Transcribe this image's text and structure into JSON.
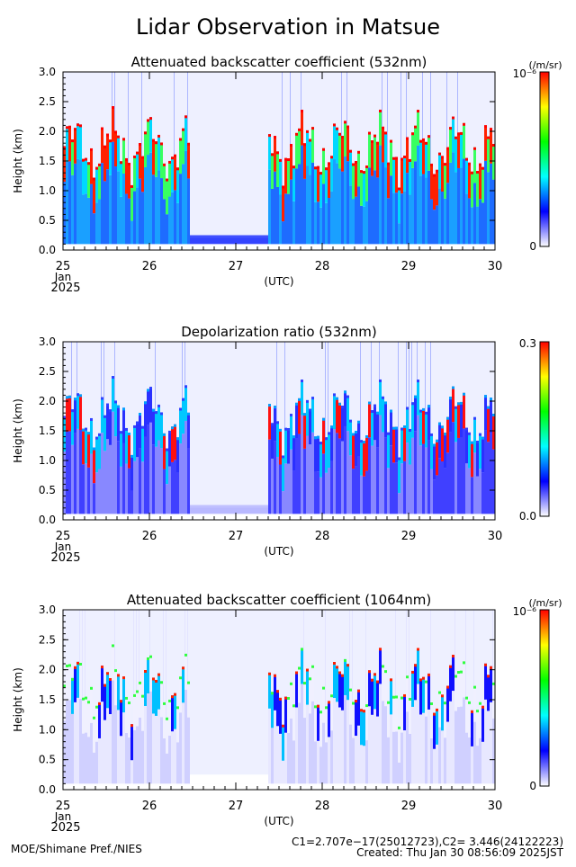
{
  "page": {
    "title": "Lidar Observation in Matsue",
    "credit": "MOE/Shimane Pref./NIES",
    "calibration": "C1=2.707e−17(25012723),C2= 3.446(24122223)",
    "created": "Created: Thu Jan 30 08:56:09 2025JST"
  },
  "chart_data": [
    {
      "type": "heatmap",
      "title": "Attenuated backscatter coefficient (532nm)",
      "ylabel": "Height (km)",
      "xlabel": "(UTC)",
      "x_ticks": [
        "25",
        "26",
        "27",
        "28",
        "29",
        "30"
      ],
      "x_month": "Jan",
      "x_year": "2025",
      "xlim": [
        25,
        30
      ],
      "ylim": [
        0,
        3
      ],
      "y_ticks": [
        "0.0",
        "0.5",
        "1.0",
        "1.5",
        "2.0",
        "2.5",
        "3.0"
      ],
      "colorbar": {
        "unit": "(/m/sr)",
        "max_label": "10⁻⁶",
        "min_label": "0",
        "colors": [
          "#ffffff",
          "#0000ff",
          "#00ffff",
          "#00ff00",
          "#ffff00",
          "#ff0000"
        ]
      }
    },
    {
      "type": "heatmap",
      "title": "Depolarization ratio (532nm)",
      "ylabel": "Height (km)",
      "xlabel": "(UTC)",
      "x_ticks": [
        "25",
        "26",
        "27",
        "28",
        "29",
        "30"
      ],
      "x_month": "Jan",
      "x_year": "2025",
      "xlim": [
        25,
        30
      ],
      "ylim": [
        0,
        3
      ],
      "y_ticks": [
        "0.0",
        "0.5",
        "1.0",
        "1.5",
        "2.0",
        "2.5",
        "3.0"
      ],
      "colorbar": {
        "unit": "",
        "max_label": "0.3",
        "min_label": "0.0",
        "colors": [
          "#ffffff",
          "#0000ff",
          "#00ffff",
          "#00ff00",
          "#ffff00",
          "#ff0000"
        ]
      }
    },
    {
      "type": "heatmap",
      "title": "Attenuated backscatter coefficient (1064nm)",
      "ylabel": "Height (km)",
      "xlabel": "(UTC)",
      "x_ticks": [
        "25",
        "26",
        "27",
        "28",
        "29",
        "30"
      ],
      "x_month": "Jan",
      "x_year": "2025",
      "xlim": [
        25,
        30
      ],
      "ylim": [
        0,
        3
      ],
      "y_ticks": [
        "0.0",
        "0.5",
        "1.0",
        "1.5",
        "2.0",
        "2.5",
        "3.0"
      ],
      "colorbar": {
        "unit": "(/m/sr)",
        "max_label": "10⁻⁶",
        "min_label": "0",
        "colors": [
          "#ffffff",
          "#0000ff",
          "#00ffff",
          "#00ff00",
          "#ffff00",
          "#ff0000"
        ]
      }
    }
  ]
}
